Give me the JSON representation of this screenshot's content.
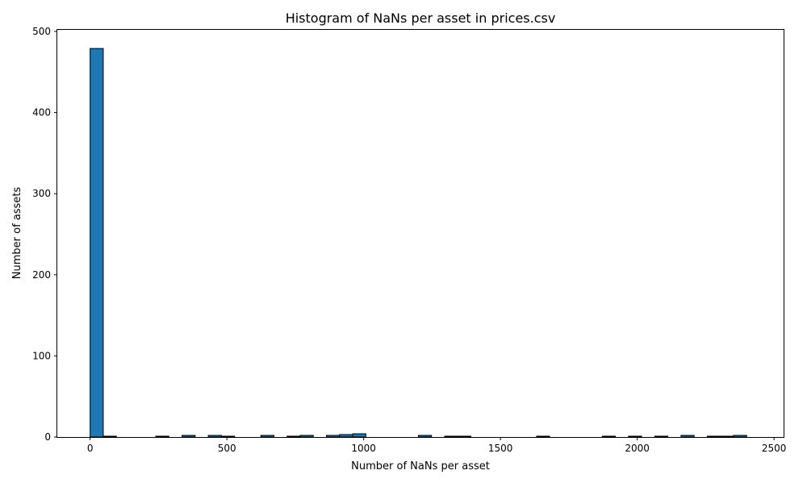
{
  "chart_data": {
    "type": "bar",
    "title": "Histogram of NaNs per asset in prices.csv",
    "xlabel": "Number of NaNs per asset",
    "ylabel": "Number of assets",
    "xlim": [
      -120,
      2535
    ],
    "ylim": [
      0,
      502
    ],
    "xticks": [
      0,
      500,
      1000,
      1500,
      2000,
      2500
    ],
    "yticks": [
      0,
      100,
      200,
      300,
      400,
      500
    ],
    "grid": false,
    "legend": "none",
    "bar_color": "#1f77b4",
    "edge_color": "#000000",
    "bins": [
      {
        "x0": 0,
        "x1": 48,
        "count": 479
      },
      {
        "x0": 48,
        "x1": 96,
        "count": 1
      },
      {
        "x0": 240,
        "x1": 288,
        "count": 1
      },
      {
        "x0": 336,
        "x1": 384,
        "count": 2
      },
      {
        "x0": 432,
        "x1": 480,
        "count": 2
      },
      {
        "x0": 480,
        "x1": 528,
        "count": 1
      },
      {
        "x0": 624,
        "x1": 672,
        "count": 2
      },
      {
        "x0": 720,
        "x1": 768,
        "count": 1
      },
      {
        "x0": 768,
        "x1": 816,
        "count": 2
      },
      {
        "x0": 864,
        "x1": 912,
        "count": 2
      },
      {
        "x0": 912,
        "x1": 960,
        "count": 3
      },
      {
        "x0": 960,
        "x1": 1008,
        "count": 4
      },
      {
        "x0": 1200,
        "x1": 1248,
        "count": 2
      },
      {
        "x0": 1296,
        "x1": 1344,
        "count": 1
      },
      {
        "x0": 1344,
        "x1": 1392,
        "count": 1
      },
      {
        "x0": 1632,
        "x1": 1680,
        "count": 1
      },
      {
        "x0": 1872,
        "x1": 1920,
        "count": 1
      },
      {
        "x0": 1968,
        "x1": 2016,
        "count": 1
      },
      {
        "x0": 2064,
        "x1": 2112,
        "count": 1
      },
      {
        "x0": 2160,
        "x1": 2208,
        "count": 2
      },
      {
        "x0": 2256,
        "x1": 2304,
        "count": 1
      },
      {
        "x0": 2304,
        "x1": 2352,
        "count": 1
      },
      {
        "x0": 2352,
        "x1": 2400,
        "count": 2
      }
    ]
  }
}
